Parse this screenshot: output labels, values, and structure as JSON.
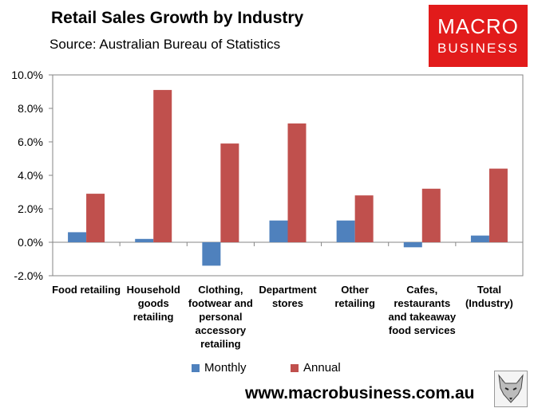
{
  "header": {
    "title": "Retail Sales Growth by Industry",
    "subtitle": "Source: Australian Bureau of Statistics"
  },
  "logo": {
    "line1": "MACRO",
    "line2": "BUSINESS",
    "bg_color": "#e21b1b"
  },
  "footer": {
    "url": "www.macrobusiness.com.au",
    "mascot_icon": "fox-icon"
  },
  "colors": {
    "monthly": "#4f81bd",
    "annual": "#c0504d"
  },
  "chart_data": {
    "type": "bar",
    "title": "Retail Sales Growth by Industry",
    "xlabel": "",
    "ylabel": "",
    "ylim": [
      -2,
      10
    ],
    "yticks": [
      -2,
      0,
      2,
      4,
      6,
      8,
      10
    ],
    "ytick_labels": [
      "-2.0%",
      "0.0%",
      "2.0%",
      "4.0%",
      "6.0%",
      "8.0%",
      "10.0%"
    ],
    "grid": false,
    "legend_position": "bottom",
    "categories": [
      [
        "Food retailing"
      ],
      [
        "Household",
        "goods",
        "retailing"
      ],
      [
        "Clothing,",
        "footwear and",
        "personal",
        "accessory",
        "retailing"
      ],
      [
        "Department",
        "stores"
      ],
      [
        "Other",
        "retailing"
      ],
      [
        "Cafes,",
        "restaurants",
        "and takeaway",
        "food services"
      ],
      [
        "Total",
        "(Industry)"
      ]
    ],
    "series": [
      {
        "name": "Monthly",
        "values": [
          0.6,
          0.2,
          -1.4,
          1.3,
          1.3,
          -0.3,
          0.4
        ]
      },
      {
        "name": "Annual",
        "values": [
          2.9,
          9.1,
          5.9,
          7.1,
          2.8,
          3.2,
          4.4
        ]
      }
    ]
  }
}
